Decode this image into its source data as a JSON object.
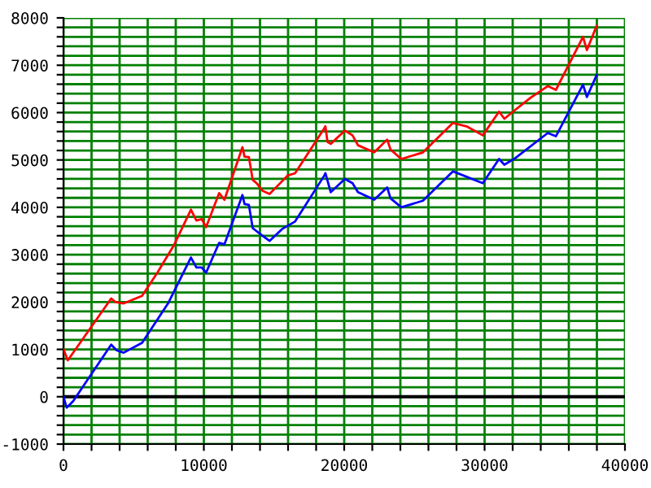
{
  "chart_data": {
    "type": "line",
    "grid": true,
    "marker": "none",
    "line_style": "solid",
    "xlim": [
      0,
      40000
    ],
    "ylim": [
      -1000,
      8000
    ],
    "xticks": [
      0,
      {
        "value": 2000,
        "label": null
      },
      {
        "value": 4000,
        "label": null
      },
      {
        "value": 6000,
        "label": null
      },
      {
        "value": 8000,
        "label": null
      },
      10000,
      {
        "value": 12000,
        "label": null
      },
      {
        "value": 14000,
        "label": null
      },
      {
        "value": 16000,
        "label": null
      },
      {
        "value": 18000,
        "label": null
      },
      20000,
      {
        "value": 22000,
        "label": null
      },
      {
        "value": 24000,
        "label": null
      },
      {
        "value": 26000,
        "label": null
      },
      {
        "value": 28000,
        "label": null
      },
      30000,
      {
        "value": 32000,
        "label": null
      },
      {
        "value": 34000,
        "label": null
      },
      {
        "value": 36000,
        "label": null
      },
      {
        "value": 38000,
        "label": null
      },
      40000
    ],
    "yticks": [
      -1000,
      {
        "value": -800,
        "label": null
      },
      {
        "value": -600,
        "label": null
      },
      {
        "value": -400,
        "label": null
      },
      {
        "value": -200,
        "label": null
      },
      0,
      {
        "value": 200,
        "label": null
      },
      {
        "value": 400,
        "label": null
      },
      {
        "value": 600,
        "label": null
      },
      {
        "value": 800,
        "label": null
      },
      1000,
      {
        "value": 1200,
        "label": null
      },
      {
        "value": 1400,
        "label": null
      },
      {
        "value": 1600,
        "label": null
      },
      {
        "value": 1800,
        "label": null
      },
      2000,
      {
        "value": 2200,
        "label": null
      },
      {
        "value": 2400,
        "label": null
      },
      {
        "value": 2600,
        "label": null
      },
      {
        "value": 2800,
        "label": null
      },
      3000,
      {
        "value": 3200,
        "label": null
      },
      {
        "value": 3400,
        "label": null
      },
      {
        "value": 3600,
        "label": null
      },
      {
        "value": 3800,
        "label": null
      },
      4000,
      {
        "value": 4200,
        "label": null
      },
      {
        "value": 4400,
        "label": null
      },
      {
        "value": 4600,
        "label": null
      },
      {
        "value": 4800,
        "label": null
      },
      5000,
      {
        "value": 5200,
        "label": null
      },
      {
        "value": 5400,
        "label": null
      },
      {
        "value": 5600,
        "label": null
      },
      {
        "value": 5800,
        "label": null
      },
      6000,
      {
        "value": 6200,
        "label": null
      },
      {
        "value": 6400,
        "label": null
      },
      {
        "value": 6600,
        "label": null
      },
      {
        "value": 6800,
        "label": null
      },
      7000,
      {
        "value": 7200,
        "label": null
      },
      {
        "value": 7400,
        "label": null
      },
      {
        "value": 7600,
        "label": null
      },
      {
        "value": 7800,
        "label": null
      },
      8000
    ],
    "ref_lines": [
      {
        "axis": "y",
        "value": 0,
        "color": "#000000"
      }
    ],
    "series": [
      {
        "color": "#ff0000",
        "x": [
          0,
          310,
          3400,
          3700,
          4290,
          5600,
          6690,
          7850,
          9080,
          9470,
          9850,
          10160,
          11090,
          11470,
          12750,
          12900,
          13210,
          13480,
          13790,
          14180,
          14680,
          15570,
          15960,
          16500,
          18580,
          18660,
          18810,
          19040,
          20050,
          20590,
          20980,
          22140,
          23060,
          23300,
          24070,
          25610,
          27740,
          28710,
          29870,
          31030,
          31410,
          32190,
          33260,
          34500,
          35080,
          37010,
          37290,
          37980
        ],
        "values": [
          1000,
          770,
          2075,
          2000,
          1970,
          2130,
          2620,
          3190,
          3950,
          3720,
          3750,
          3580,
          4300,
          4160,
          5270,
          5070,
          5060,
          4580,
          4500,
          4350,
          4280,
          4550,
          4670,
          4720,
          5670,
          5710,
          5380,
          5340,
          5620,
          5520,
          5310,
          5160,
          5430,
          5220,
          5020,
          5160,
          5780,
          5710,
          5520,
          6020,
          5870,
          6060,
          6310,
          6560,
          6480,
          7600,
          7320,
          7830
        ]
      },
      {
        "color": "#0000ff",
        "x": [
          0,
          230,
          700,
          3400,
          3790,
          4290,
          5600,
          7450,
          9080,
          9470,
          9850,
          10160,
          11090,
          11470,
          12750,
          12900,
          13210,
          13480,
          14180,
          14680,
          15570,
          16500,
          18580,
          18660,
          19040,
          20050,
          20590,
          20980,
          22140,
          23060,
          23300,
          24070,
          25610,
          27740,
          29870,
          31030,
          31410,
          32190,
          34500,
          35080,
          37010,
          37290,
          37980
        ],
        "values": [
          0,
          -230,
          -90,
          1100,
          980,
          930,
          1140,
          1970,
          2940,
          2730,
          2730,
          2620,
          3250,
          3220,
          4260,
          4070,
          4050,
          3560,
          3400,
          3290,
          3540,
          3700,
          4670,
          4720,
          4320,
          4600,
          4510,
          4320,
          4160,
          4420,
          4190,
          4000,
          4140,
          4760,
          4510,
          5020,
          4900,
          5040,
          5570,
          5500,
          6590,
          6330,
          6790
        ]
      }
    ]
  }
}
